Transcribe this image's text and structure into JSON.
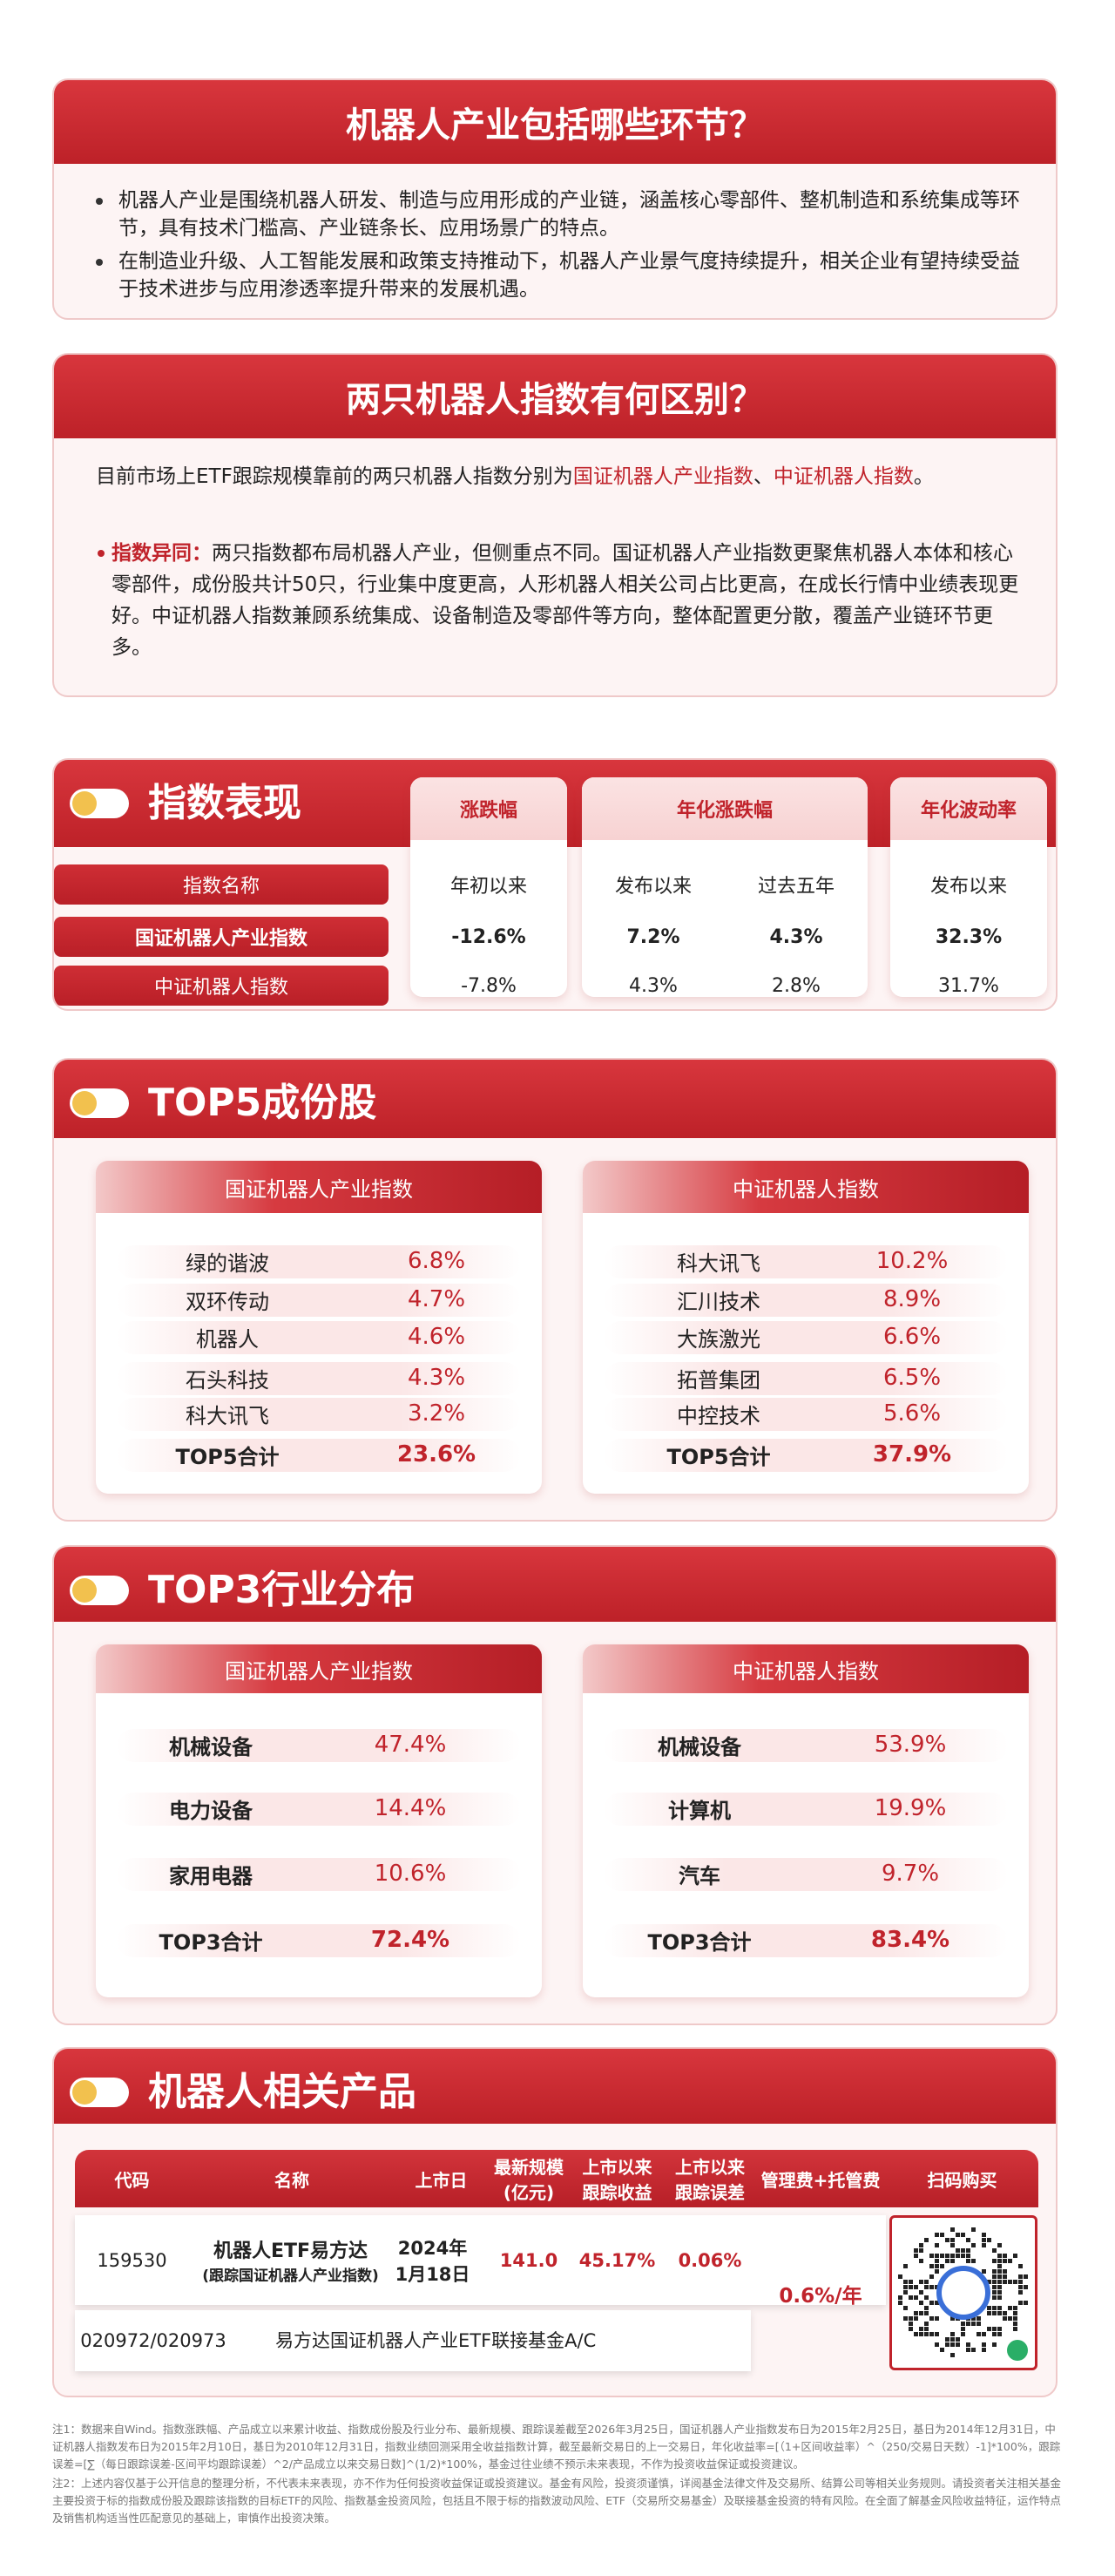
{
  "q1": {
    "title": "机器人产业包括哪些环节？",
    "bullets": [
      "机器人产业是围绕机器人研发、制造与应用形成的产业链，涵盖核心零部件、整机制造和系统集成等环节，具有技术门槛高、产业链条长、应用场景广的特点。",
      "在制造业升级、人工智能发展和政策支持推动下，机器人产业景气度持续提升，相关企业有望持续受益于技术进步与应用渗透率提升带来的发展机遇。"
    ]
  },
  "q2": {
    "title": "两只机器人指数有何区别？",
    "intro": [
      "目前市场上ETF跟踪规模靠前的两只机器人指数分别为",
      "国证机器人产业指数",
      "、",
      "中证机器人指数",
      "。"
    ],
    "point_label": "指数异同：",
    "point_text": "两只指数都布局机器人产业，但侧重点不同。国证机器人产业指数更聚焦机器人本体和核心零部件，成份股共计50只，行业集中度更高，人形机器人相关公司占比更高，在成长行情中业绩表现更好。中证机器人指数兼顾系统集成、设备制造及零部件等方向，整体配置更分散，覆盖产业链环节更多。"
  },
  "performance": {
    "title": "指数表现",
    "name_header": "指数名称",
    "groups": [
      {
        "label": "涨跌幅",
        "columns": [
          "年初以来"
        ]
      },
      {
        "label": "年化涨跌幅",
        "columns": [
          "发布以来",
          "过去五年"
        ]
      },
      {
        "label": "年化波动率",
        "columns": [
          "发布以来"
        ]
      }
    ],
    "rows": [
      {
        "name": "国证机器人产业指数",
        "values": [
          "-12.6%",
          "7.2%",
          "4.3%",
          "32.3%"
        ]
      },
      {
        "name": "中证机器人指数",
        "values": [
          "-7.8%",
          "4.3%",
          "2.8%",
          "31.7%"
        ]
      }
    ]
  },
  "top5": {
    "title": "TOP5成份股",
    "tables": [
      {
        "title": "国证机器人产业指数",
        "rows": [
          [
            "绿的谐波",
            "6.8%"
          ],
          [
            "双环传动",
            "4.7%"
          ],
          [
            "机器人",
            "4.6%"
          ],
          [
            "石头科技",
            "4.3%"
          ],
          [
            "科大讯飞",
            "3.2%"
          ]
        ],
        "total": [
          "TOP5合计",
          "23.6%"
        ]
      },
      {
        "title": "中证机器人指数",
        "rows": [
          [
            "科大讯飞",
            "10.2%"
          ],
          [
            "汇川技术",
            "8.9%"
          ],
          [
            "大族激光",
            "6.6%"
          ],
          [
            "拓普集团",
            "6.5%"
          ],
          [
            "中控技术",
            "5.6%"
          ]
        ],
        "total": [
          "TOP5合计",
          "37.9%"
        ]
      }
    ]
  },
  "top3": {
    "title": "TOP3行业分布",
    "tables": [
      {
        "title": "国证机器人产业指数",
        "rows": [
          [
            "机械设备",
            "47.4%"
          ],
          [
            "电力设备",
            "14.4%"
          ],
          [
            "家用电器",
            "10.6%"
          ]
        ],
        "total": [
          "TOP3合计",
          "72.4%"
        ]
      },
      {
        "title": "中证机器人指数",
        "rows": [
          [
            "机械设备",
            "53.9%"
          ],
          [
            "计算机",
            "19.9%"
          ],
          [
            "汽车",
            "9.7%"
          ]
        ],
        "total": [
          "TOP3合计",
          "83.4%"
        ]
      }
    ]
  },
  "products": {
    "title": "机器人相关产品",
    "headers": [
      [
        "代码"
      ],
      [
        "名称"
      ],
      [
        "上市日"
      ],
      [
        "最新规模",
        "(亿元)"
      ],
      [
        "上市以来",
        "跟踪收益"
      ],
      [
        "上市以来",
        "跟踪误差"
      ],
      [
        "管理费+托管费"
      ],
      [
        "扫码购买"
      ]
    ],
    "etf": {
      "code": "159530",
      "name": "机器人ETF易方达",
      "subname": "(跟踪国证机器人产业指数)",
      "date": [
        "2024年",
        "1月18日"
      ],
      "scale": "141.0",
      "return": "45.17%",
      "error": "0.06%"
    },
    "fee": "0.6%/年",
    "link": {
      "code": "020972/020973",
      "name": "易方达国证机器人产业ETF联接基金A/C"
    }
  },
  "notes": [
    "注1：数据来自Wind。指数涨跌幅、产品成立以来累计收益、指数成份股及行业分布、最新规模、跟踪误差截至2026年3月25日，国证机器人产业指数发布日为2015年2月25日，基日为2014年12月31日，中证机器人指数发布日为2015年2月10日，基日为2010年12月31日，指数业绩回测采用全收益指数计算，截至最新交易日的上一交易日，年化收益率=[（1+区间收益率）^（250/交易日天数）-1]*100%，跟踪误差=[∑（每日跟踪误差-区间平均跟踪误差）^2/产品成立以来交易日数]^(1/2)*100%，基金过往业绩不预示未来表现，不作为投资收益保证或投资建议。",
    "注2：上述内容仅基于公开信息的整理分析，不代表未来表现，亦不作为任何投资收益保证或投资建议。基金有风险，投资须谨慎，详阅基金法律文件及交易所、结算公司等相关业务规则。请投资者关注相关基金主要投资于标的指数成份股及跟踪该指数的目标ETF的风险、指数基金投资风险，包括且不限于标的指数波动风险、ETF（交易所交易基金）及联接基金投资的特有风险。在全面了解基金风险收益特征，运作特点及销售机构适当性匹配意见的基础上，审慎作出投资决策。"
  ]
}
